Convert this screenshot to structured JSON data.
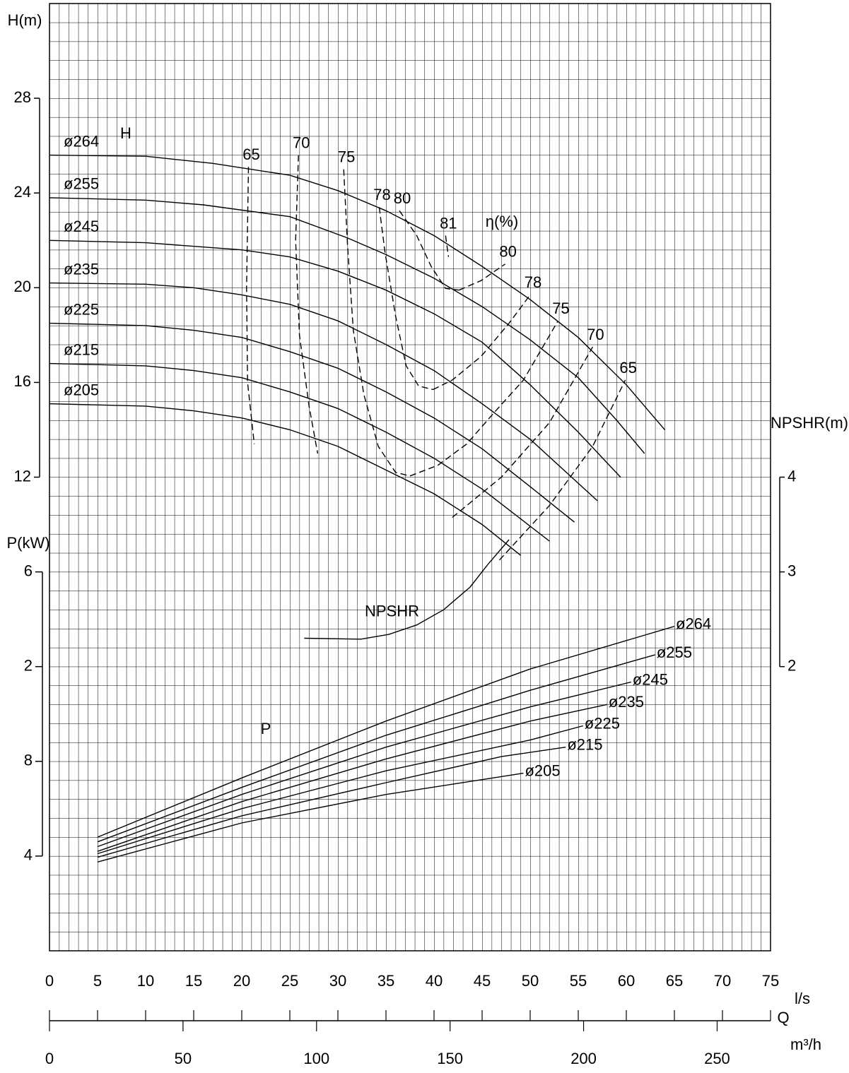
{
  "chart_data": {
    "type": "line",
    "y_label": "H(m)",
    "y3_label": "P(kW)",
    "y2_label": "NPSHR(m)",
    "x_label": "l/s",
    "x_name": "Q",
    "x2_label": "m³/h",
    "annotations": [
      "H",
      "P",
      "η(%)"
    ],
    "xlim": [
      0,
      75
    ],
    "xticks": [
      0,
      5,
      10,
      15,
      20,
      25,
      30,
      35,
      40,
      45,
      50,
      55,
      60,
      65,
      70,
      75
    ],
    "x2lim": [
      0,
      270
    ],
    "x2ticks": [
      0,
      50,
      100,
      150,
      200,
      250
    ],
    "ylim": [
      -8,
      32
    ],
    "yticks": [
      12,
      16,
      20,
      24,
      28
    ],
    "y3lim": [
      0,
      40
    ],
    "y3ticks": [
      4,
      8,
      {
        "value": 12,
        "label": "2"
      },
      {
        "value": 16,
        "label": "6"
      }
    ],
    "y2lim": [
      -1,
      9
    ],
    "y2ticks": [
      2,
      3,
      4
    ],
    "grid": true,
    "series": [
      {
        "name": "ø264",
        "color": "#000000",
        "axis": "y",
        "x": [
          0,
          10,
          17,
          25,
          30,
          35,
          40,
          45,
          50,
          55,
          60,
          64
        ],
        "values": [
          25.6,
          25.55,
          25.25,
          24.75,
          24.1,
          23.25,
          22.2,
          20.9,
          19.5,
          17.9,
          15.9,
          14.0
        ]
      },
      {
        "name": "ø255",
        "color": "#000000",
        "axis": "y",
        "x": [
          0,
          10,
          16,
          25,
          31,
          35,
          40,
          45,
          50,
          55,
          59,
          61.9
        ],
        "values": [
          23.8,
          23.7,
          23.5,
          23.0,
          22.1,
          21.4,
          20.4,
          19.2,
          17.8,
          16.2,
          14.4,
          13.0
        ]
      },
      {
        "name": "ø245",
        "color": "#000000",
        "axis": "y",
        "x": [
          0,
          10,
          20,
          25,
          30,
          35,
          40,
          45,
          50,
          55,
          59.4
        ],
        "values": [
          22.0,
          21.9,
          21.6,
          21.3,
          20.7,
          19.9,
          18.9,
          17.7,
          15.9,
          13.9,
          12.0
        ]
      },
      {
        "name": "ø235",
        "color": "#000000",
        "axis": "y",
        "x": [
          0,
          10,
          15,
          20,
          25,
          30,
          35,
          40,
          45,
          50,
          57
        ],
        "values": [
          20.2,
          20.15,
          20.0,
          19.7,
          19.3,
          18.6,
          17.6,
          16.5,
          15.1,
          13.6,
          11.0
        ]
      },
      {
        "name": "ø225",
        "color": "#000000",
        "axis": "y",
        "x": [
          0,
          10,
          15,
          20,
          25,
          30,
          35,
          40,
          45,
          50,
          54.6
        ],
        "values": [
          18.5,
          18.4,
          18.2,
          17.9,
          17.3,
          16.6,
          15.6,
          14.5,
          13.2,
          11.6,
          10.1
        ]
      },
      {
        "name": "ø215",
        "color": "#000000",
        "axis": "y",
        "x": [
          0,
          10,
          15,
          20,
          25,
          30,
          35,
          40,
          45,
          52
        ],
        "values": [
          16.8,
          16.7,
          16.5,
          16.2,
          15.6,
          14.9,
          13.9,
          12.8,
          11.5,
          9.3
        ]
      },
      {
        "name": "ø205",
        "color": "#000000",
        "axis": "y",
        "x": [
          0,
          10,
          15,
          20,
          25,
          30,
          35,
          40,
          45,
          49
        ],
        "values": [
          15.1,
          15.0,
          14.8,
          14.5,
          14.0,
          13.3,
          12.3,
          11.3,
          10.0,
          8.7
        ]
      }
    ],
    "efficiency_series": [
      {
        "name": "65",
        "color": "#000000",
        "axis": "y",
        "line_style": "dashed",
        "x": [
          20.7,
          20.5,
          20.6,
          21.3
        ],
        "values": [
          25.1,
          20,
          16,
          13.4
        ]
      },
      {
        "name": "70",
        "color": "#000000",
        "axis": "y",
        "line_style": "dashed",
        "x": [
          25.9,
          25.6,
          26.0,
          27.0,
          27.9
        ],
        "values": [
          25.6,
          22,
          18,
          15,
          13
        ]
      },
      {
        "name": "75",
        "color": "#000000",
        "axis": "y",
        "line_style": "dashed",
        "x": [
          30.6,
          31.0,
          31.6,
          32.7,
          34.2,
          36.0,
          37.5
        ],
        "values": [
          25.0,
          21.8,
          18.2,
          15.5,
          13.3,
          12.2,
          12.05
        ]
      },
      {
        "name": "78",
        "color": "#000000",
        "axis": "y",
        "line_style": "dashed",
        "x": [
          34.3,
          34.9,
          36.0,
          37.1,
          38.4,
          39.9
        ],
        "values": [
          23.4,
          21.5,
          18.8,
          16.7,
          15.85,
          15.7
        ]
      },
      {
        "name": "80",
        "color": "#000000",
        "axis": "y",
        "line_style": "dashed",
        "x": [
          36.4,
          38.2,
          39.7,
          41.2,
          42.6
        ],
        "values": [
          23.25,
          22.2,
          20.9,
          19.97,
          19.9
        ]
      },
      {
        "name": "81",
        "color": "#000000",
        "axis": "y",
        "line_style": "dashed",
        "x": [
          41.2,
          41.5
        ],
        "values": [
          22.2,
          21.3
        ]
      },
      {
        "name": "80",
        "color": "#000000",
        "axis": "y",
        "line_style": "dashed",
        "x": [
          42.6,
          44.9,
          47.4
        ],
        "values": [
          19.9,
          20.3,
          21.0
        ]
      },
      {
        "name": "78",
        "color": "#000000",
        "axis": "y",
        "line_style": "dashed",
        "x": [
          39.9,
          41.9,
          44.9,
          47.8,
          50.0
        ],
        "values": [
          15.7,
          16.1,
          17.1,
          18.5,
          19.7
        ]
      },
      {
        "name": "75",
        "color": "#000000",
        "axis": "y",
        "line_style": "dashed",
        "x": [
          37.5,
          40.4,
          43.4,
          46.3,
          49.3,
          52.9
        ],
        "values": [
          12.05,
          12.5,
          13.4,
          14.75,
          16.1,
          18.6
        ]
      },
      {
        "name": "70",
        "color": "#000000",
        "axis": "y",
        "line_style": "dashed",
        "x": [
          41.9,
          47,
          52,
          56.5
        ],
        "values": [
          10.3,
          12,
          14.3,
          17.5
        ]
      },
      {
        "name": "65",
        "color": "#000000",
        "axis": "y",
        "line_style": "dashed",
        "x": [
          46.8,
          52,
          56.5,
          59.9
        ],
        "values": [
          8.5,
          10.8,
          13.3,
          16.1
        ]
      }
    ],
    "power_series": [
      {
        "name": "ø264",
        "color": "#000000",
        "axis": "y3",
        "x": [
          5,
          20,
          35,
          50,
          65
        ],
        "values": [
          4.8,
          7.3,
          9.7,
          11.9,
          13.7
        ]
      },
      {
        "name": "ø255",
        "color": "#000000",
        "axis": "y3",
        "x": [
          5,
          20,
          35,
          50,
          63
        ],
        "values": [
          4.6,
          6.9,
          9.1,
          11.0,
          12.5
        ]
      },
      {
        "name": "ø245",
        "color": "#000000",
        "axis": "y3",
        "x": [
          5,
          20,
          35,
          50,
          60.5
        ],
        "values": [
          4.4,
          6.6,
          8.6,
          10.3,
          11.35
        ]
      },
      {
        "name": "ø235",
        "color": "#000000",
        "axis": "y3",
        "x": [
          5,
          20,
          35,
          50,
          58
        ],
        "values": [
          4.2,
          6.3,
          8.1,
          9.7,
          10.4
        ]
      },
      {
        "name": "ø225",
        "color": "#000000",
        "axis": "y3",
        "x": [
          5,
          20,
          35,
          50,
          55.5
        ],
        "values": [
          4.1,
          6.0,
          7.6,
          8.9,
          9.5
        ]
      },
      {
        "name": "ø215",
        "color": "#000000",
        "axis": "y3",
        "x": [
          5,
          20,
          35,
          47,
          53.7
        ],
        "values": [
          3.95,
          5.7,
          7.1,
          8.2,
          8.6
        ]
      },
      {
        "name": "ø205",
        "color": "#000000",
        "axis": "y3",
        "x": [
          5,
          20,
          35,
          49.3
        ],
        "values": [
          3.75,
          5.4,
          6.6,
          7.5
        ]
      }
    ],
    "npshr_series": [
      {
        "name": "NPSHR",
        "color": "#000000",
        "axis": "y2",
        "x": [
          26.5,
          32.4,
          35.3,
          38.2,
          41.0,
          43.75,
          45.6,
          47.8
        ],
        "values": [
          2.3,
          2.29,
          2.34,
          2.44,
          2.6,
          2.84,
          3.08,
          3.34
        ]
      }
    ]
  }
}
